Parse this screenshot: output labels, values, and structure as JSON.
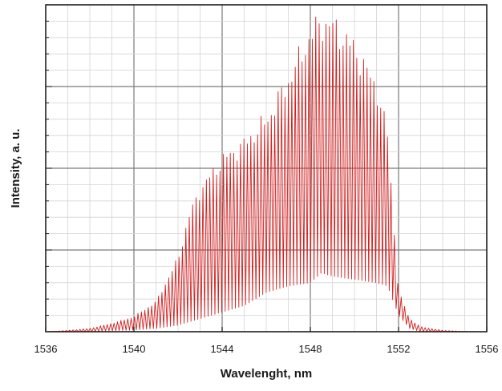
{
  "chart_data": {
    "type": "line",
    "title": "",
    "xlabel": "Wavelenght, nm",
    "ylabel": "Intensity, a. u.",
    "xlim": [
      1536,
      1556
    ],
    "ylim": [
      0,
      1
    ],
    "x_ticks": [
      "1536",
      "1540",
      "1544",
      "1548",
      "1552",
      "1556"
    ],
    "grid": true,
    "legend": "none",
    "series": [
      {
        "color": "#d02020",
        "style": "comb-modulated spectrum with envelope shown",
        "points": [
          {
            "x": 1536.0,
            "y_max": 0.0,
            "y_min": 0.0
          },
          {
            "x": 1537.0,
            "y_max": 0.004,
            "y_min": 0.0
          },
          {
            "x": 1538.0,
            "y_max": 0.01,
            "y_min": 0.0
          },
          {
            "x": 1539.0,
            "y_max": 0.025,
            "y_min": 0.003
          },
          {
            "x": 1540.0,
            "y_max": 0.045,
            "y_min": 0.005
          },
          {
            "x": 1541.0,
            "y_max": 0.09,
            "y_min": 0.01
          },
          {
            "x": 1542.0,
            "y_max": 0.22,
            "y_min": 0.02
          },
          {
            "x": 1542.5,
            "y_max": 0.35,
            "y_min": 0.03
          },
          {
            "x": 1543.0,
            "y_max": 0.43,
            "y_min": 0.04
          },
          {
            "x": 1544.0,
            "y_max": 0.52,
            "y_min": 0.06
          },
          {
            "x": 1545.0,
            "y_max": 0.57,
            "y_min": 0.08
          },
          {
            "x": 1546.0,
            "y_max": 0.64,
            "y_min": 0.12
          },
          {
            "x": 1547.0,
            "y_max": 0.76,
            "y_min": 0.14
          },
          {
            "x": 1548.0,
            "y_max": 0.9,
            "y_min": 0.15
          },
          {
            "x": 1548.5,
            "y_max": 0.94,
            "y_min": 0.18
          },
          {
            "x": 1549.0,
            "y_max": 0.93,
            "y_min": 0.17
          },
          {
            "x": 1550.0,
            "y_max": 0.86,
            "y_min": 0.16
          },
          {
            "x": 1551.0,
            "y_max": 0.74,
            "y_min": 0.15
          },
          {
            "x": 1551.5,
            "y_max": 0.6,
            "y_min": 0.14
          },
          {
            "x": 1552.0,
            "y_max": 0.12,
            "y_min": 0.05
          },
          {
            "x": 1552.5,
            "y_max": 0.04,
            "y_min": 0.01
          },
          {
            "x": 1553.0,
            "y_max": 0.015,
            "y_min": 0.0
          },
          {
            "x": 1554.0,
            "y_max": 0.004,
            "y_min": 0.0
          },
          {
            "x": 1555.0,
            "y_max": 0.001,
            "y_min": 0.0
          },
          {
            "x": 1556.0,
            "y_max": 0.0,
            "y_min": 0.0
          }
        ]
      }
    ]
  }
}
